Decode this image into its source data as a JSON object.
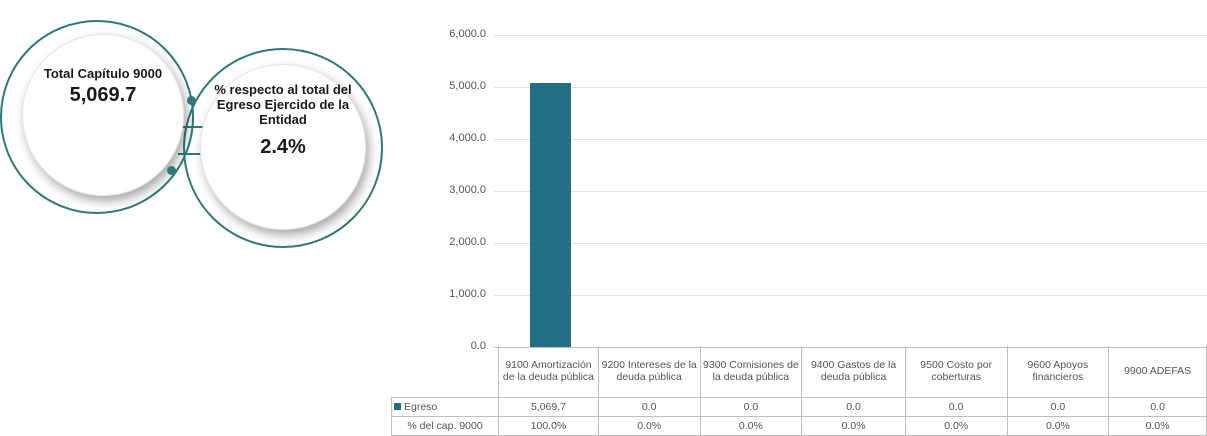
{
  "kpi": {
    "total_label": "Total Capítulo 9000",
    "total_value": "5,069.7",
    "pct_label": "% respecto al total del Egreso Ejercido de la Entidad",
    "pct_value": "2.4%"
  },
  "chart_data": {
    "type": "bar",
    "categories": [
      "9100 Amortización de la deuda pública",
      "9200 Intereses de la deuda pública",
      "9300 Comisiones de la deuda pública",
      "9400 Gastos de la deuda pública",
      "9500 Costo por coberturas",
      "9600 Apoyos financieros",
      "9900 ADEFAS"
    ],
    "series": [
      {
        "name": "Egreso",
        "values": [
          5069.7,
          0.0,
          0.0,
          0.0,
          0.0,
          0.0,
          0.0
        ]
      }
    ],
    "ylim": [
      0,
      6000
    ],
    "yticks": [
      "0.0",
      "1,000.0",
      "2,000.0",
      "3,000.0",
      "4,000.0",
      "5,000.0",
      "6,000.0"
    ],
    "grid": true,
    "colors": {
      "bar": "#226e82"
    },
    "table": {
      "rows": [
        {
          "label": "Egreso",
          "values": [
            "5,069.7",
            "0.0",
            "0.0",
            "0.0",
            "0.0",
            "0.0",
            "0.0"
          ]
        },
        {
          "label": "% del cap. 9000",
          "values": [
            "100.0%",
            "0.0%",
            "0.0%",
            "0.0%",
            "0.0%",
            "0.0%",
            "0.0%"
          ]
        }
      ]
    }
  }
}
